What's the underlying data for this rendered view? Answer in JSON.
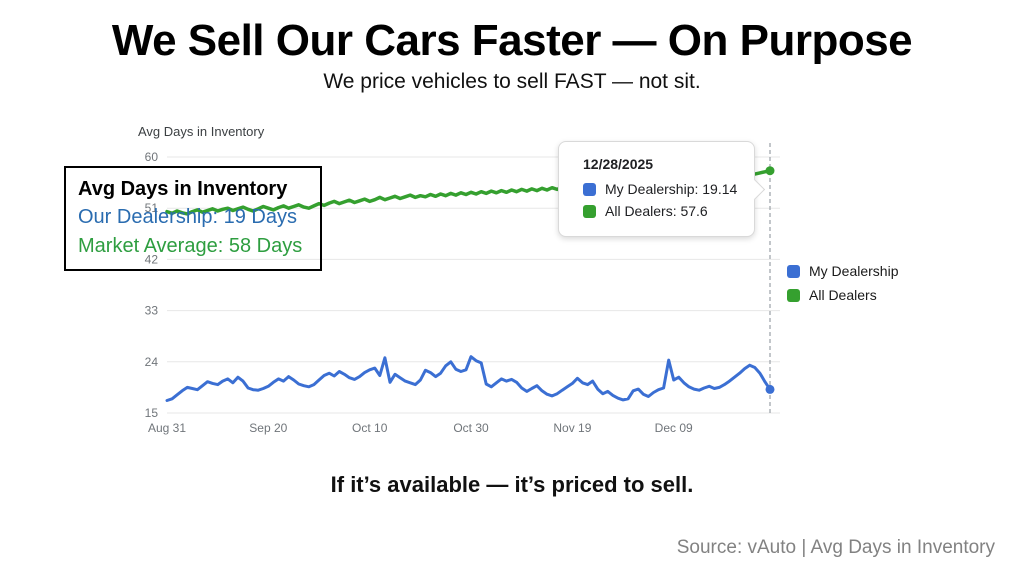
{
  "header": {
    "title": "We Sell Our Cars Faster — On Purpose",
    "subtitle": "We price vehicles to sell FAST — not sit."
  },
  "chart": {
    "axis_title": "Avg Days in Inventory",
    "annotation": {
      "title": "Avg Days in Inventory",
      "line1": "Our Dealership: 19 Days",
      "line2": "Market Average: 58 Days",
      "line1_color": "#2a6cb0",
      "line2_color": "#2e9e40"
    },
    "tooltip": {
      "date": "12/28/2025",
      "items": [
        {
          "text": "My Dealership: 19.14",
          "color": "#3b6fd3"
        },
        {
          "text": "All Dealers: 57.6",
          "color": "#35a02f"
        }
      ]
    },
    "legend": [
      {
        "label": "My Dealership",
        "color": "#3b6fd3"
      },
      {
        "label": "All Dealers",
        "color": "#35a02f"
      }
    ]
  },
  "chart_data": {
    "type": "line",
    "title": "Avg Days in Inventory",
    "xlabel": "",
    "ylabel": "Avg Days in Inventory",
    "ylim": [
      15,
      60
    ],
    "y_ticks": [
      15,
      24,
      33,
      42,
      51,
      60
    ],
    "x_tick_labels": [
      "Aug 31",
      "Sep 20",
      "Oct 10",
      "Oct 30",
      "Nov 19",
      "Dec 09"
    ],
    "x_tick_days": [
      0,
      20,
      40,
      60,
      80,
      100
    ],
    "grid": true,
    "legend_position": "right",
    "highlight": {
      "date": "12/28/2025",
      "my_dealership": 19.14,
      "all_dealers": 57.6
    },
    "series": [
      {
        "name": "My Dealership",
        "color": "#3b6fd3",
        "width": 3,
        "values": [
          17.2,
          17.5,
          18.2,
          18.9,
          19.5,
          19.3,
          19.1,
          19.8,
          20.5,
          20.2,
          20.0,
          20.6,
          21.0,
          20.3,
          21.3,
          20.6,
          19.4,
          19.1,
          19.0,
          19.3,
          19.7,
          20.4,
          21.0,
          20.6,
          21.4,
          20.8,
          20.1,
          19.8,
          19.6,
          20.0,
          20.8,
          21.6,
          22.0,
          21.5,
          22.3,
          21.8,
          21.2,
          20.9,
          21.4,
          22.1,
          22.6,
          22.9,
          21.6,
          24.7,
          20.4,
          21.8,
          21.2,
          20.6,
          20.3,
          20.0,
          20.8,
          22.5,
          22.1,
          21.4,
          22.0,
          23.3,
          24.0,
          22.7,
          22.3,
          22.6,
          24.9,
          24.2,
          23.8,
          20.1,
          19.6,
          20.3,
          21.0,
          20.6,
          20.9,
          20.4,
          19.4,
          18.8,
          19.3,
          19.8,
          18.9,
          18.3,
          18.0,
          18.4,
          19.0,
          19.6,
          20.2,
          21.1,
          20.3,
          20.0,
          20.6,
          19.2,
          18.4,
          18.8,
          18.1,
          17.6,
          17.3,
          17.5,
          18.9,
          19.2,
          18.3,
          17.9,
          18.6,
          19.1,
          19.4,
          24.3,
          20.8,
          21.3,
          20.3,
          19.6,
          19.2,
          19.0,
          19.4,
          19.7,
          19.3,
          19.5,
          20.0,
          20.6,
          21.3,
          22.0,
          22.8,
          23.4,
          23.0,
          22.0,
          20.5,
          19.14
        ]
      },
      {
        "name": "All Dealers",
        "color": "#35a02f",
        "width": 3.5,
        "values": [
          50.4,
          50.1,
          50.5,
          50.2,
          50.0,
          50.4,
          50.7,
          50.3,
          50.6,
          50.9,
          50.5,
          50.8,
          51.0,
          50.6,
          50.9,
          51.2,
          50.8,
          50.5,
          50.9,
          51.3,
          51.0,
          50.7,
          51.1,
          51.4,
          51.0,
          51.3,
          51.6,
          51.2,
          51.0,
          51.4,
          51.8,
          51.5,
          51.9,
          52.2,
          51.8,
          52.1,
          52.4,
          52.0,
          52.3,
          52.6,
          52.2,
          52.5,
          52.9,
          52.5,
          52.8,
          53.1,
          52.7,
          53.0,
          53.3,
          52.9,
          53.2,
          53.0,
          53.4,
          53.1,
          53.5,
          53.2,
          53.6,
          53.3,
          53.7,
          53.4,
          53.8,
          53.5,
          53.9,
          53.6,
          54.0,
          53.7,
          54.1,
          53.8,
          54.2,
          53.9,
          54.3,
          54.0,
          54.4,
          54.1,
          54.5,
          54.2,
          54.6,
          54.3,
          54.7,
          54.4,
          54.8,
          54.5,
          54.9,
          54.6,
          55.0,
          54.7,
          55.1,
          54.8,
          55.2,
          54.9,
          55.3,
          55.0,
          55.4,
          55.1,
          55.5,
          55.2,
          55.6,
          55.3,
          55.7,
          55.4,
          55.8,
          55.5,
          55.9,
          55.6,
          56.0,
          55.7,
          56.1,
          55.8,
          56.2,
          55.9,
          56.3,
          56.0,
          56.4,
          56.1,
          56.5,
          56.8,
          57.0,
          57.2,
          57.4,
          57.6
        ]
      }
    ]
  },
  "footer": {
    "tagline": "If it’s available — it’s priced to sell.",
    "source": "Source: vAuto | Avg Days in Inventory"
  }
}
